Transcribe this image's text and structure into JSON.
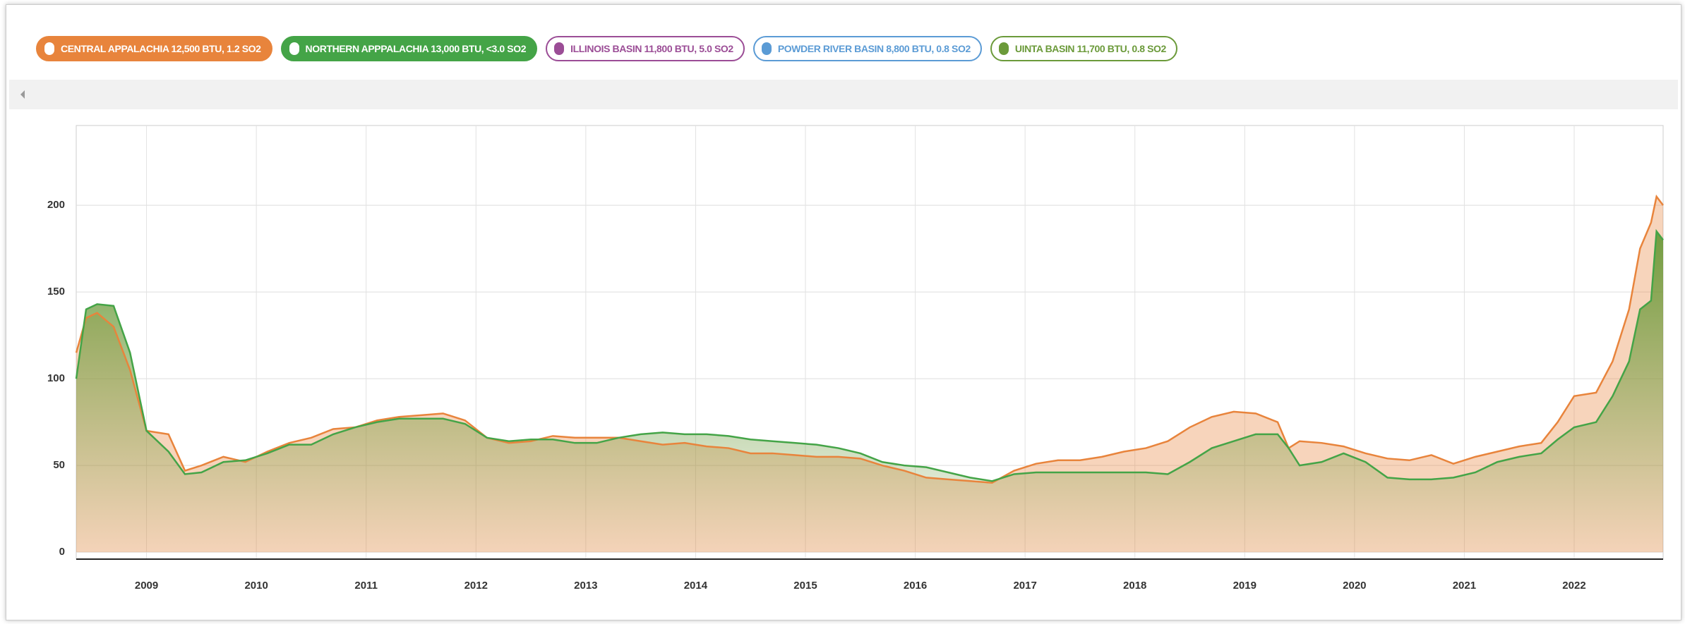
{
  "chart_data": {
    "type": "area",
    "x": [
      2008.36,
      2008.45,
      2008.55,
      2008.7,
      2008.85,
      2009.0,
      2009.2,
      2009.35,
      2009.5,
      2009.7,
      2009.9,
      2010.1,
      2010.3,
      2010.5,
      2010.7,
      2010.9,
      2011.1,
      2011.3,
      2011.5,
      2011.7,
      2011.9,
      2012.1,
      2012.3,
      2012.5,
      2012.7,
      2012.9,
      2013.1,
      2013.3,
      2013.5,
      2013.7,
      2013.9,
      2014.1,
      2014.3,
      2014.5,
      2014.7,
      2014.9,
      2015.1,
      2015.3,
      2015.5,
      2015.7,
      2015.9,
      2016.1,
      2016.3,
      2016.5,
      2016.7,
      2016.9,
      2017.1,
      2017.3,
      2017.5,
      2017.7,
      2017.9,
      2018.1,
      2018.3,
      2018.5,
      2018.7,
      2018.9,
      2019.1,
      2019.3,
      2019.4,
      2019.5,
      2019.7,
      2019.9,
      2020.1,
      2020.3,
      2020.5,
      2020.7,
      2020.9,
      2021.1,
      2021.3,
      2021.5,
      2021.7,
      2021.85,
      2022.0,
      2022.2,
      2022.35,
      2022.5,
      2022.6,
      2022.7,
      2022.75,
      2022.81
    ],
    "series": [
      {
        "name": "CENTRAL APPALACHIA 12,500 BTU, 1.2 SO2",
        "color": "#e8843c",
        "visible": true,
        "values": [
          115,
          135,
          138,
          130,
          105,
          70,
          68,
          47,
          50,
          55,
          52,
          58,
          63,
          66,
          71,
          72,
          76,
          78,
          79,
          80,
          76,
          66,
          63,
          64,
          67,
          66,
          66,
          66,
          64,
          62,
          63,
          61,
          60,
          57,
          57,
          56,
          55,
          55,
          54,
          50,
          47,
          43,
          42,
          41,
          40,
          47,
          51,
          53,
          53,
          55,
          58,
          60,
          64,
          72,
          78,
          81,
          80,
          75,
          60,
          64,
          63,
          61,
          57,
          54,
          53,
          56,
          51,
          55,
          58,
          61,
          63,
          75,
          90,
          92,
          110,
          140,
          175,
          190,
          205,
          200
        ]
      },
      {
        "name": "NORTHERN APPPALACHIA 13,000 BTU, <3.0 SO2",
        "color": "#44a447",
        "visible": true,
        "values": [
          100,
          140,
          143,
          142,
          115,
          70,
          58,
          45,
          46,
          52,
          53,
          57,
          62,
          62,
          68,
          72,
          75,
          77,
          77,
          77,
          74,
          66,
          64,
          65,
          65,
          63,
          63,
          66,
          68,
          69,
          68,
          68,
          67,
          65,
          64,
          63,
          62,
          60,
          57,
          52,
          50,
          49,
          46,
          43,
          41,
          45,
          46,
          46,
          46,
          46,
          46,
          46,
          45,
          52,
          60,
          64,
          68,
          68,
          60,
          50,
          52,
          57,
          52,
          43,
          42,
          42,
          43,
          46,
          52,
          55,
          57,
          65,
          72,
          75,
          90,
          110,
          140,
          145,
          185,
          180
        ]
      },
      {
        "name": "ILLINOIS BASIN 11,800 BTU, 5.0 SO2",
        "color": "#9b4d96",
        "visible": false
      },
      {
        "name": "POWDER RIVER BASIN 8,800 BTU, 0.8 SO2",
        "color": "#5b9bd5",
        "visible": false
      },
      {
        "name": "UINTA BASIN 11,700 BTU, 0.8 SO2",
        "color": "#6b9a3a",
        "visible": false
      }
    ],
    "xlim": [
      2008.36,
      2022.81
    ],
    "xticks": [
      2009,
      2010,
      2011,
      2012,
      2013,
      2014,
      2015,
      2016,
      2017,
      2018,
      2019,
      2020,
      2021,
      2022
    ],
    "ylim": [
      -4,
      246
    ],
    "yticks": [
      0,
      50,
      100,
      150,
      200
    ],
    "grid": true
  }
}
